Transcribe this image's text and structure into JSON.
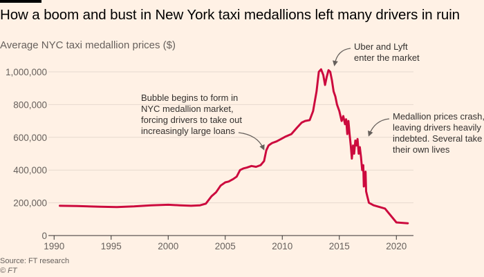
{
  "chart_data": {
    "type": "line",
    "title": "How a boom and bust in New York taxi medallions left many drivers in ruin",
    "subtitle": "Average NYC taxi medallion prices ($)",
    "xlabel": "",
    "ylabel": "",
    "xlim": [
      1989.5,
      2021.5
    ],
    "ylim": [
      0,
      1000000
    ],
    "x_ticks": [
      1990,
      1995,
      2000,
      2005,
      2010,
      2015,
      2020
    ],
    "y_ticks": [
      0,
      200000,
      400000,
      600000,
      800000,
      1000000
    ],
    "y_tick_labels": [
      "0",
      "200,000",
      "400,000",
      "600,000",
      "800,000",
      "1,000,000"
    ],
    "grid": "horizontal",
    "line_color": "#cc0a3e",
    "series": [
      {
        "name": "",
        "x": [
          1990.5,
          1992,
          1994,
          1995.5,
          1997,
          1998.5,
          2000,
          2001,
          2002,
          2002.8,
          2003.3,
          2003.8,
          2004.2,
          2004.6,
          2005.0,
          2005.3,
          2005.7,
          2006.0,
          2006.3,
          2006.6,
          2006.9,
          2007.3,
          2007.7,
          2008.1,
          2008.4,
          2008.6,
          2008.8,
          2009.1,
          2009.5,
          2009.9,
          2010.3,
          2010.8,
          2011.3,
          2011.7,
          2012.0,
          2012.4,
          2012.7,
          2013.0,
          2013.2,
          2013.4,
          2013.6,
          2013.75,
          2013.9,
          2014.05,
          2014.2,
          2014.35,
          2014.5,
          2014.65,
          2014.8,
          2015.0,
          2015.2,
          2015.35,
          2015.5,
          2015.6,
          2015.7,
          2015.8,
          2015.9,
          2016.0,
          2016.1,
          2016.2,
          2016.3,
          2016.4,
          2016.5,
          2016.6,
          2016.7,
          2016.8,
          2016.9,
          2017.0,
          2017.1,
          2017.15,
          2017.25,
          2017.3,
          2017.35,
          2017.45,
          2017.6,
          2018.0,
          2019.0,
          2020.0,
          2021.0
        ],
        "y": [
          182000,
          180000,
          176000,
          174000,
          178000,
          185000,
          188000,
          185000,
          182000,
          185000,
          195000,
          240000,
          265000,
          305000,
          325000,
          330000,
          345000,
          360000,
          400000,
          410000,
          415000,
          425000,
          420000,
          430000,
          455000,
          520000,
          550000,
          565000,
          575000,
          590000,
          605000,
          620000,
          660000,
          690000,
          700000,
          705000,
          760000,
          880000,
          1000000,
          1015000,
          980000,
          920000,
          970000,
          1010000,
          1000000,
          950000,
          880000,
          850000,
          800000,
          760000,
          700000,
          730000,
          680000,
          710000,
          620000,
          700000,
          620000,
          550000,
          470000,
          550000,
          500000,
          580000,
          550000,
          590000,
          500000,
          540000,
          480000,
          400000,
          430000,
          300000,
          380000,
          390000,
          270000,
          240000,
          200000,
          185000,
          165000,
          80000,
          75000
        ]
      }
    ],
    "annotations": [
      {
        "lines": [
          "Bubble begins to form in",
          "NYC medallion market,",
          "forcing drivers to take out",
          "increasingly large loans"
        ]
      },
      {
        "lines": [
          "Uber and Lyft",
          "enter the market"
        ]
      },
      {
        "lines": [
          "Medallion prices crash,",
          "leaving drivers heavily",
          "indebted. Several take",
          "their own lives"
        ]
      }
    ]
  },
  "source": "Source: FT research",
  "copyright": "© FT"
}
